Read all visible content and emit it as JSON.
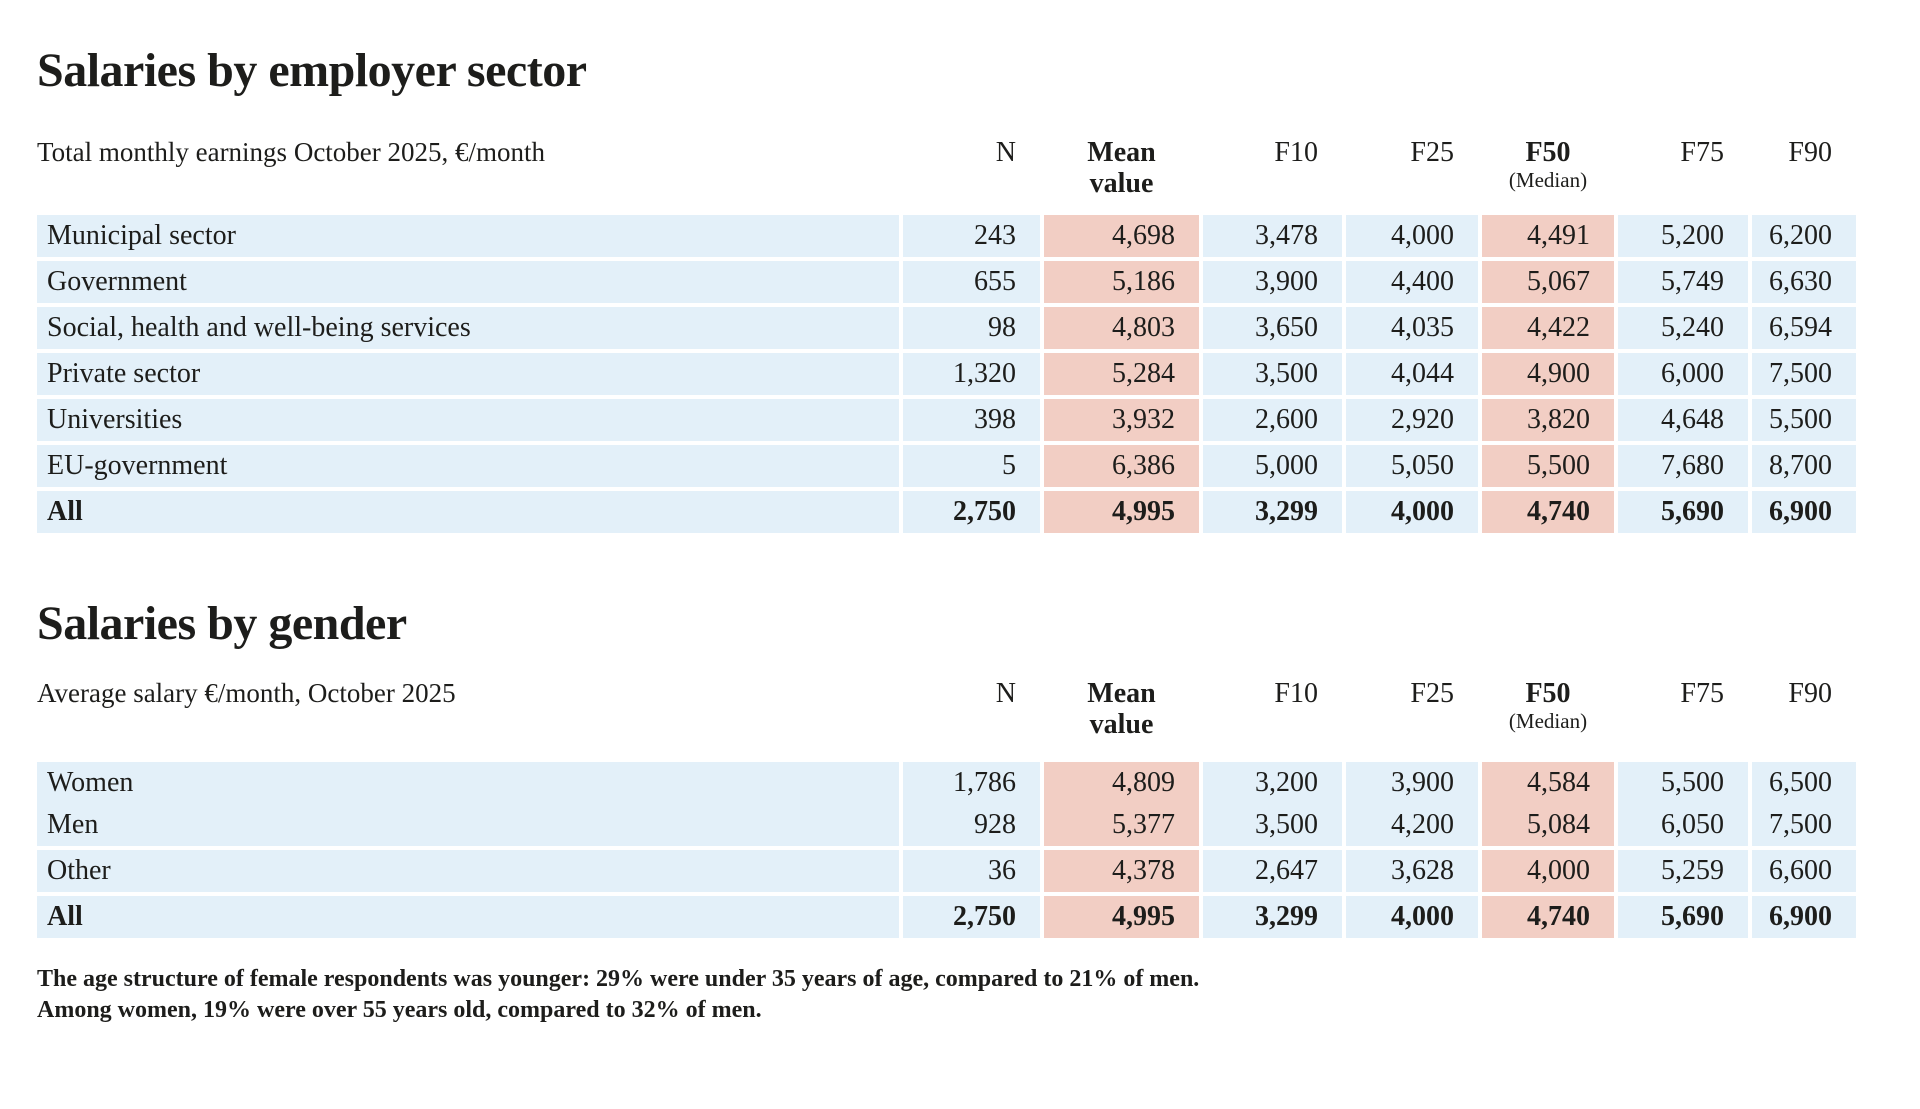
{
  "colors": {
    "row_blue": "#e3f0f9",
    "highlight_pink": "#f2cec4",
    "text": "#1d1d1b"
  },
  "columns": {
    "n": "N",
    "mean_line1": "Mean",
    "mean_line2": "value",
    "f10": "F10",
    "f25": "F25",
    "f50": "F50",
    "f50_sub": "(Median)",
    "f75": "F75",
    "f90": "F90"
  },
  "tables": [
    {
      "title": "Salaries by employer sector",
      "subtitle": "Total monthly earnings October 2025, €/month",
      "rows": [
        {
          "label": "Municipal sector",
          "n": "243",
          "mean": "4,698",
          "f10": "3,478",
          "f25": "4,000",
          "f50": "4,491",
          "f75": "5,200",
          "f90": "6,200"
        },
        {
          "label": "Government",
          "n": "655",
          "mean": "5,186",
          "f10": "3,900",
          "f25": "4,400",
          "f50": "5,067",
          "f75": "5,749",
          "f90": "6,630"
        },
        {
          "label": "Social, health and well-being services",
          "n": "98",
          "mean": "4,803",
          "f10": "3,650",
          "f25": "4,035",
          "f50": "4,422",
          "f75": "5,240",
          "f90": "6,594"
        },
        {
          "label": "Private sector",
          "n": "1,320",
          "mean": "5,284",
          "f10": "3,500",
          "f25": "4,044",
          "f50": "4,900",
          "f75": "6,000",
          "f90": "7,500"
        },
        {
          "label": "Universities",
          "n": "398",
          "mean": "3,932",
          "f10": "2,600",
          "f25": "2,920",
          "f50": "3,820",
          "f75": "4,648",
          "f90": "5,500"
        },
        {
          "label": "EU-government",
          "n": "5",
          "mean": "6,386",
          "f10": "5,000",
          "f25": "5,050",
          "f50": "5,500",
          "f75": "7,680",
          "f90": "8,700"
        },
        {
          "label": "All",
          "n": "2,750",
          "mean": "4,995",
          "f10": "3,299",
          "f25": "4,000",
          "f50": "4,740",
          "f75": "5,690",
          "f90": "6,900"
        }
      ]
    },
    {
      "title": "Salaries by gender",
      "subtitle": "Average salary €/month, October 2025",
      "rows": [
        {
          "label": "Women",
          "n": "1,786",
          "mean": "4,809",
          "f10": "3,200",
          "f25": "3,900",
          "f50": "4,584",
          "f75": "5,500",
          "f90": "6,500"
        },
        {
          "label": "Men",
          "n": "928",
          "mean": "5,377",
          "f10": "3,500",
          "f25": "4,200",
          "f50": "5,084",
          "f75": "6,050",
          "f90": "7,500"
        },
        {
          "label": "Other",
          "n": "36",
          "mean": "4,378",
          "f10": "2,647",
          "f25": "3,628",
          "f50": "4,000",
          "f75": "5,259",
          "f90": "6,600"
        },
        {
          "label": "All",
          "n": "2,750",
          "mean": "4,995",
          "f10": "3,299",
          "f25": "4,000",
          "f50": "4,740",
          "f75": "5,690",
          "f90": "6,900"
        }
      ]
    }
  ],
  "footnote": {
    "line1": "The age structure of female respondents was younger: 29% were under 35 years of age, compared to 21% of men.",
    "line2": "Among women, 19% were over 55 years old, compared to 32% of men."
  }
}
